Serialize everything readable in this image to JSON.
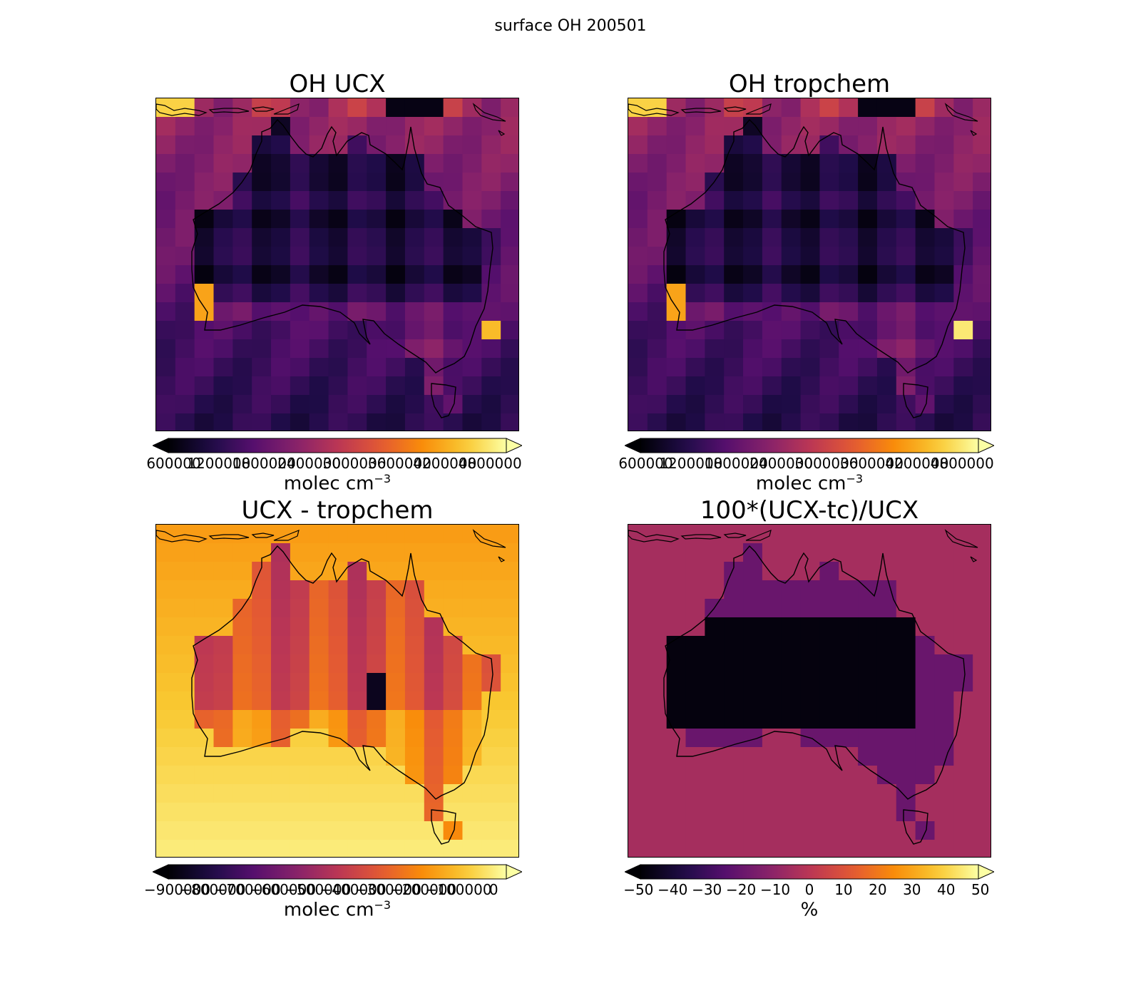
{
  "figure_title": "surface OH 200501",
  "colormap": "inferno",
  "panels": [
    {
      "id": "oh-ucx",
      "title": "OH UCX",
      "colorbar": {
        "ticks": [
          "600000",
          "1200000",
          "1800000",
          "2400000",
          "3000000",
          "3600000",
          "4200000",
          "4800000"
        ],
        "label": "molec cm",
        "label_exp": "−3"
      }
    },
    {
      "id": "oh-tropchem",
      "title": "OH tropchem",
      "colorbar": {
        "ticks": [
          "600000",
          "1200000",
          "1800000",
          "2400000",
          "3000000",
          "3600000",
          "4200000",
          "4800000"
        ],
        "label": "molec cm",
        "label_exp": "−3"
      }
    },
    {
      "id": "ucx-minus-tropchem",
      "title": "UCX - tropchem",
      "colorbar": {
        "ticks": [
          "−900000",
          "−800000",
          "−700000",
          "−600000",
          "−500000",
          "−400000",
          "−300000",
          "−200000",
          "−100000",
          "0"
        ],
        "label": "molec cm",
        "label_exp": "−3"
      }
    },
    {
      "id": "percent-diff",
      "title": "100*(UCX-tc)/UCX",
      "colorbar": {
        "ticks": [
          "−50",
          "−40",
          "−30",
          "−20",
          "−10",
          "0",
          "10",
          "20",
          "30",
          "40",
          "50"
        ],
        "label": "%",
        "label_exp": ""
      }
    }
  ]
}
